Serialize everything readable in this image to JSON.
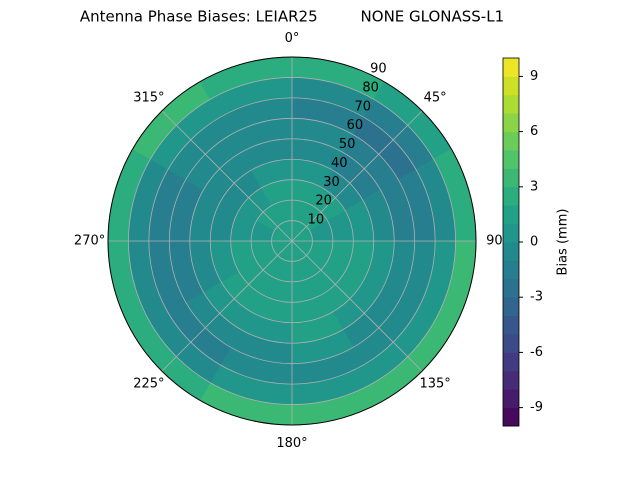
{
  "chart_data": {
    "type": "polar_contour",
    "title": "Antenna Phase Biases: LEIAR25         NONE GLONASS-L1",
    "colorbar_label": "Bias (mm)",
    "colormap": "viridis",
    "azimuth_edges": [
      0,
      30,
      60,
      90,
      120,
      150,
      180,
      210,
      240,
      270,
      300,
      330,
      360
    ],
    "zenith_edges": [
      0,
      10,
      20,
      30,
      40,
      50,
      60,
      70,
      80,
      90
    ],
    "values": [
      [
        1,
        1,
        1,
        1,
        1,
        1,
        1,
        1,
        1,
        1,
        1,
        1
      ],
      [
        1,
        1,
        0,
        1,
        1,
        1,
        1,
        1,
        1,
        0,
        1,
        1
      ],
      [
        1,
        1,
        0,
        1,
        1,
        1,
        1,
        1,
        1,
        0,
        0,
        1
      ],
      [
        0,
        -1,
        0,
        1,
        1,
        1,
        1,
        1,
        0,
        -1,
        -1,
        0
      ],
      [
        -1,
        -2,
        -1,
        0,
        0,
        1,
        0,
        0,
        -1,
        -1,
        -1,
        -1
      ],
      [
        -1,
        -2,
        -2,
        -1,
        -1,
        0,
        -1,
        -1,
        -2,
        -2,
        -1,
        -1
      ],
      [
        -2,
        -3,
        -2,
        -1,
        -1,
        -1,
        -1,
        -2,
        -2,
        -2,
        -1,
        -1
      ],
      [
        -1,
        -2,
        -1,
        0,
        0,
        0,
        0,
        -1,
        -1,
        -1,
        0,
        0
      ],
      [
        2,
        1,
        2,
        3,
        3,
        3,
        3,
        2,
        2,
        2,
        3,
        2
      ]
    ],
    "rlim": [
      0,
      90
    ],
    "rticks": [
      10,
      20,
      30,
      40,
      50,
      60,
      70,
      80,
      90
    ],
    "thetaticks": [
      {
        "value": 0,
        "label": "0°"
      },
      {
        "value": 45,
        "label": "45°"
      },
      {
        "value": 90,
        "label": "90"
      },
      {
        "value": 135,
        "label": "135°"
      },
      {
        "value": 180,
        "label": "180°"
      },
      {
        "value": 225,
        "label": "225°"
      },
      {
        "value": 270,
        "label": "270°"
      },
      {
        "value": 315,
        "label": "315°"
      }
    ],
    "levels": [
      -10,
      -9,
      -8,
      -7,
      -6,
      -5,
      -4,
      -3,
      -2,
      -1,
      0,
      1,
      2,
      3,
      4,
      5,
      6,
      7,
      8,
      9,
      10
    ],
    "clim": [
      -10,
      10
    ],
    "cticks": [
      -9,
      -6,
      -3,
      0,
      3,
      6,
      9
    ],
    "grid": true
  }
}
